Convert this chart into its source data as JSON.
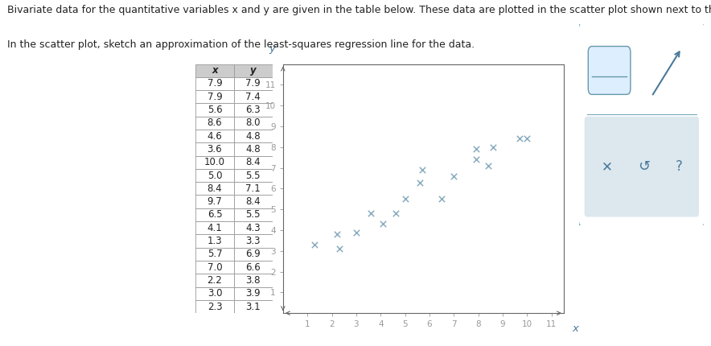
{
  "x_data": [
    7.9,
    7.9,
    5.6,
    8.6,
    4.6,
    3.6,
    10.0,
    5.0,
    8.4,
    9.7,
    6.5,
    4.1,
    1.3,
    5.7,
    7.0,
    2.2,
    3.0,
    2.3
  ],
  "y_data": [
    7.9,
    7.4,
    6.3,
    8.0,
    4.8,
    4.8,
    8.4,
    5.5,
    7.1,
    8.4,
    5.5,
    4.3,
    3.3,
    6.9,
    6.6,
    3.8,
    3.9,
    3.1
  ],
  "marker_color": "#8aacbf",
  "marker": "x",
  "markersize": 5,
  "title_text1": "Bivariate data for the quantitative variables x and y are given in the table below. These data are plotted in the scatter plot shown next to the table.",
  "title_text2": "In the scatter plot, sketch an approximation of the least-squares regression line for the data.",
  "table_headers": [
    "x",
    "y"
  ],
  "xlim": [
    0,
    11.5
  ],
  "ylim": [
    0,
    12
  ],
  "xticks": [
    1,
    2,
    3,
    4,
    5,
    6,
    7,
    8,
    9,
    10,
    11
  ],
  "yticks": [
    1,
    2,
    3,
    4,
    5,
    6,
    7,
    8,
    9,
    10,
    11
  ],
  "xlabel": "x",
  "ylabel": "y",
  "axis_label_color": "#4a7a9b",
  "tick_color": "#999999",
  "plot_bg": "#ffffff",
  "border_color": "#666666",
  "table_header_bg": "#cccccc",
  "table_cell_bg": "#ffffff",
  "table_border_color": "#999999",
  "text_color": "#222222",
  "font_size_title": 9.0,
  "font_size_table": 8.5,
  "toolbar_bg": "#dce8ee",
  "toolbar_border": "#7aaabb"
}
